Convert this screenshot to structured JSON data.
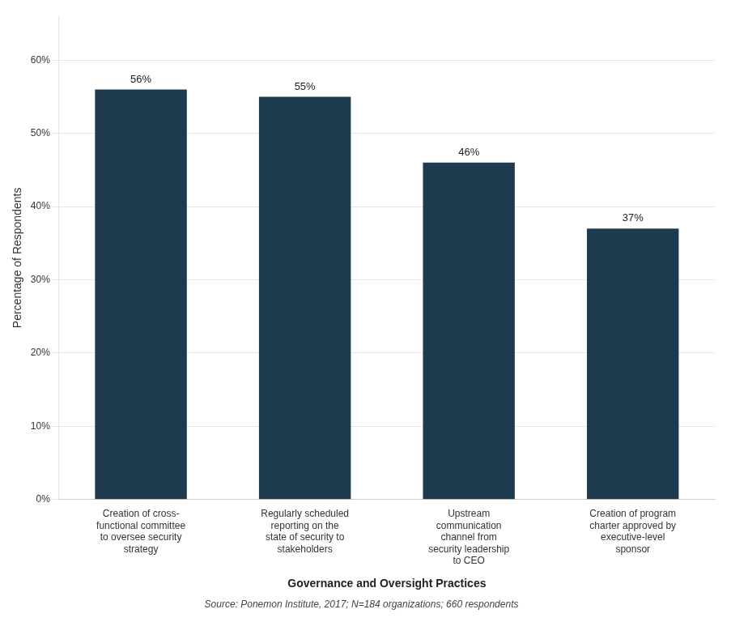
{
  "chart_data": {
    "type": "bar",
    "categories": [
      "Creation of cross-\nfunctional committee\nto oversee security\nstrategy",
      "Regularly scheduled\nreporting on the\nstate of security to\nstakeholders",
      "Upstream\ncommunication\nchannel from\nsecurity leadership\nto CEO",
      "Creation of program\ncharter approved by\nexecutive-level\nsponsor"
    ],
    "values": [
      56,
      55,
      46,
      37
    ],
    "value_labels": [
      "56%",
      "55%",
      "46%",
      "37%"
    ],
    "data_labels": true,
    "color": "#1e3a4f",
    "ylabel": "Percentage of Respondents",
    "xlabel": "Governance and Oversight Practices",
    "annotations": [
      "Source: Ponemon Institute, 2017; N=184 organizations; 660 respondents"
    ],
    "ylim": [
      0,
      66
    ],
    "yticks": [
      {
        "value": 0,
        "label": "0%"
      },
      {
        "value": 10,
        "label": "10%"
      },
      {
        "value": 20,
        "label": "20%"
      },
      {
        "value": 30,
        "label": "30%"
      },
      {
        "value": 40,
        "label": "40%"
      },
      {
        "value": 50,
        "label": "50%"
      },
      {
        "value": 60,
        "label": "60%"
      }
    ],
    "grid": true
  }
}
